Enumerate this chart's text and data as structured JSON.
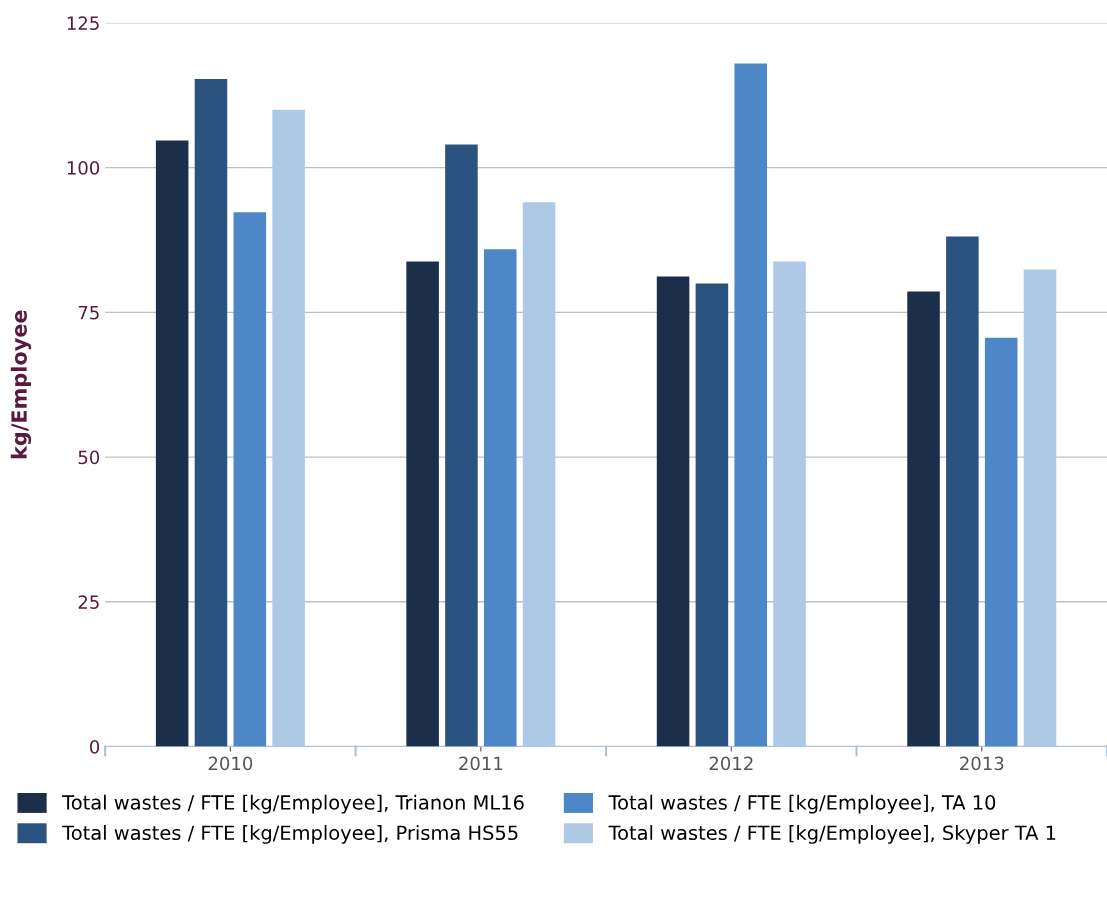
{
  "chart_data": {
    "type": "bar",
    "ylabel": "kg/Employee",
    "categories": [
      "2010",
      "2011",
      "2012",
      "2013"
    ],
    "series": [
      {
        "name": "Total wastes / FTE [kg/Employee], Trianon ML16",
        "color": "#1b2f4a",
        "values": [
          104.7,
          83.8,
          81.2,
          78.6
        ]
      },
      {
        "name": "Total wastes / FTE [kg/Employee], Prisma HS55",
        "color": "#2a5382",
        "values": [
          115.3,
          104,
          80,
          88.1
        ]
      },
      {
        "name": "Total wastes / FTE [kg/Employee], TA 10",
        "color": "#4d87c7",
        "values": [
          92.3,
          85.9,
          118,
          70.6
        ]
      },
      {
        "name": "Total wastes / FTE [kg/Employee], Skyper TA 1",
        "color": "#adc9e6",
        "values": [
          110,
          94,
          83.8,
          82.4
        ]
      }
    ],
    "ylim": [
      0,
      125
    ],
    "yticks": [
      0,
      25,
      50,
      75,
      100,
      125
    ],
    "grid": "y",
    "legend": "bottom"
  }
}
